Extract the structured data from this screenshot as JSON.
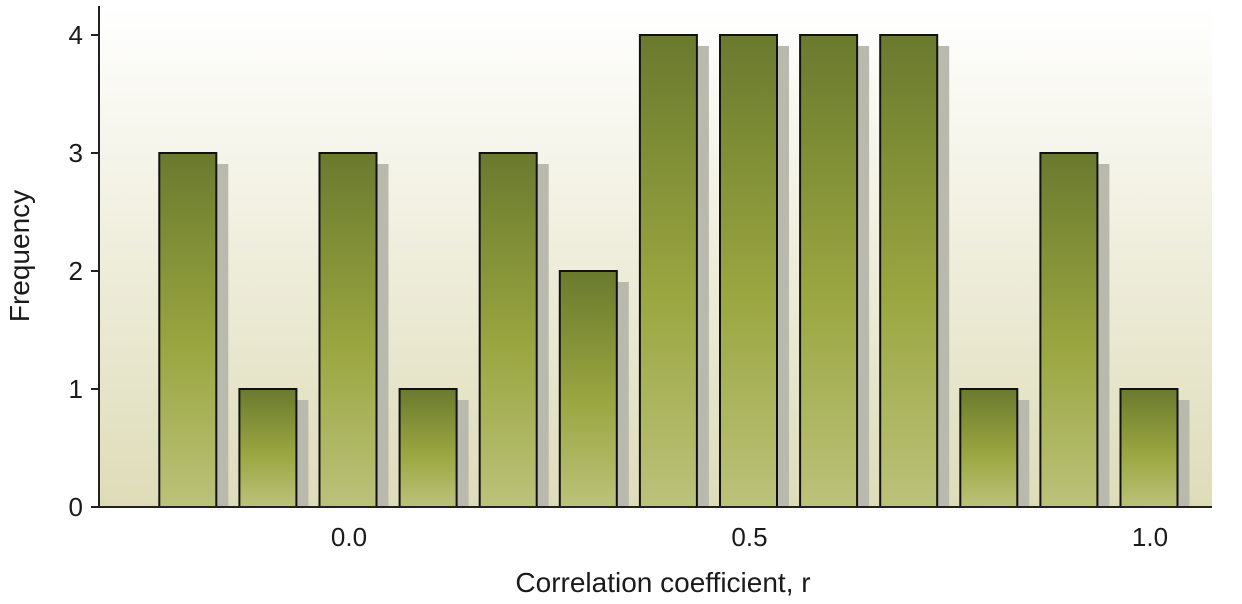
{
  "chart_data": {
    "type": "bar",
    "xlabel": "Correlation coefficient, r",
    "ylabel": "Frequency",
    "ylim": [
      0,
      4
    ],
    "xlim": [
      -0.3,
      1.1
    ],
    "bin_width": 0.1,
    "bins": [
      {
        "x": -0.2,
        "value": 3
      },
      {
        "x": -0.1,
        "value": 1
      },
      {
        "x": 0.0,
        "value": 3
      },
      {
        "x": 0.1,
        "value": 1
      },
      {
        "x": 0.2,
        "value": 3
      },
      {
        "x": 0.3,
        "value": 2
      },
      {
        "x": 0.4,
        "value": 4
      },
      {
        "x": 0.5,
        "value": 4
      },
      {
        "x": 0.6,
        "value": 4
      },
      {
        "x": 0.7,
        "value": 4
      },
      {
        "x": 0.8,
        "value": 1
      },
      {
        "x": 0.9,
        "value": 3
      },
      {
        "x": 1.0,
        "value": 1
      }
    ],
    "x_ticks": [
      {
        "value": 0.0,
        "label": "0.0"
      },
      {
        "value": 0.5,
        "label": "0.5"
      },
      {
        "value": 1.0,
        "label": "1.0"
      }
    ],
    "y_ticks": [
      {
        "value": 0,
        "label": "0"
      },
      {
        "value": 1,
        "label": "1"
      },
      {
        "value": 2,
        "label": "2"
      },
      {
        "value": 3,
        "label": "3"
      },
      {
        "value": 4,
        "label": "4"
      }
    ],
    "grid": false,
    "colors": {
      "bar_dark": "#6a7a2e",
      "bar_mid": "#9aa640",
      "bar_light": "#bcc27a",
      "bar_stroke": "#111111",
      "shadow": "#b9b9ae",
      "bg_top": "#ffffff",
      "bg_bottom": "#dedcb8",
      "axis": "#222222"
    }
  }
}
